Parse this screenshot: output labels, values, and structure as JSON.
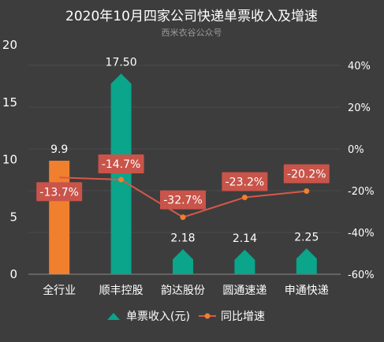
{
  "chart_data": {
    "type": "bar",
    "title": "2020年10月四家公司快递单票收入及增速",
    "subtitle": "西米衣谷公众号",
    "categories": [
      "全行业",
      "顺丰控股",
      "韵达股份",
      "圆通速递",
      "申通快递"
    ],
    "series": [
      {
        "name": "单票收入(元)",
        "type": "bar",
        "axis": "left",
        "values": [
          9.9,
          17.5,
          2.18,
          2.14,
          2.25
        ],
        "value_labels": [
          "9.9",
          "17.50",
          "2.18",
          "2.14",
          "2.25"
        ],
        "colors": [
          "#f07f2e",
          "#0aa58a",
          "#0aa58a",
          "#0aa58a",
          "#0aa58a"
        ]
      },
      {
        "name": "同比增速",
        "type": "line",
        "axis": "right",
        "values": [
          -13.7,
          -14.7,
          -32.7,
          -23.2,
          -20.2
        ],
        "value_labels": [
          "-13.7%",
          "-14.7%",
          "-32.7%",
          "-23.2%",
          "-20.2%"
        ],
        "color": "#d9574a"
      }
    ],
    "left_axis": {
      "ticks": [
        "0",
        "5",
        "10",
        "15",
        "20"
      ],
      "ylim": [
        0,
        20
      ]
    },
    "right_axis": {
      "ticks": [
        "-60%",
        "-40%",
        "-20%",
        "0%",
        "20%",
        "40%"
      ],
      "ylim": [
        -60,
        50
      ]
    },
    "grid": true,
    "legend_position": "bottom",
    "colors": {
      "background": "#3d3d3d",
      "bar_main": "#0aa58a",
      "bar_highlight": "#f07f2e",
      "line": "#d9574a",
      "label_box": "#c9544a"
    }
  }
}
